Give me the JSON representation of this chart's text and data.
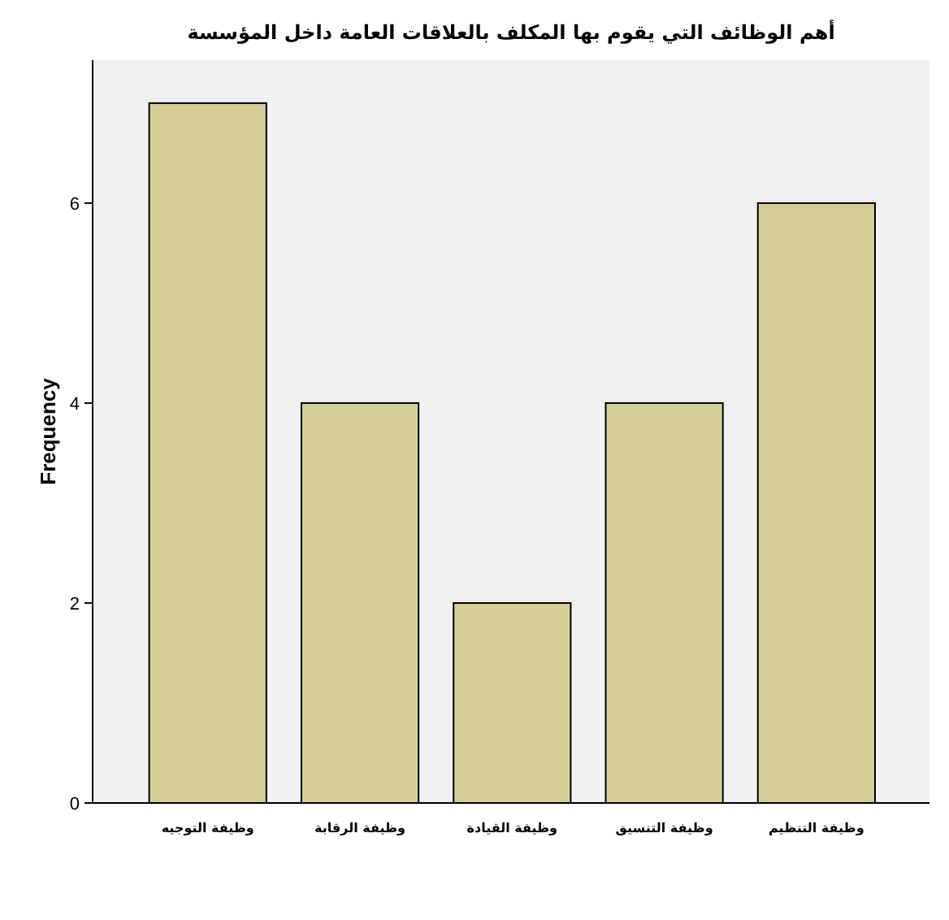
{
  "chart_data": {
    "type": "bar",
    "title": "أهم الوظائف التي يقوم بها المكلف بالعلاقات العامة داخل المؤسسة",
    "ylabel": "Frequency",
    "categories": [
      "وظيفة التوجيه",
      "وظيفة الرقابة",
      "وظيفة القيادة",
      "وظيفة التنسيق",
      "وظيفة التنظيم"
    ],
    "values": [
      7,
      4,
      2,
      4,
      6
    ],
    "color": "#d3ce97",
    "ylim": [
      0,
      7.43
    ],
    "yticks": [
      0,
      2,
      4,
      6
    ],
    "grid": false
  }
}
